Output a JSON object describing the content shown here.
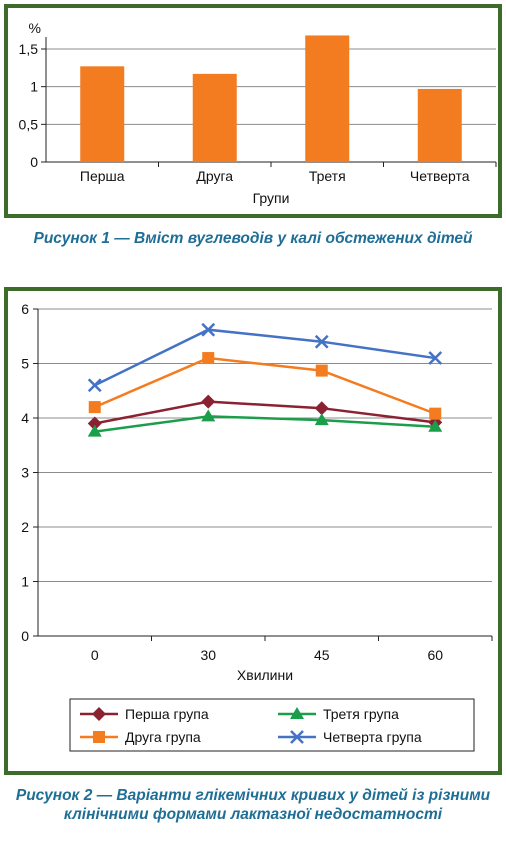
{
  "chart_data": [
    {
      "type": "bar",
      "unit_label": "%",
      "xlabel": "Групи",
      "ylabel": "",
      "categories": [
        "Перша",
        "Друга",
        "Третя",
        "Четверта"
      ],
      "values": [
        1.27,
        1.17,
        1.68,
        0.97
      ],
      "ylim": [
        0,
        1.5
      ],
      "yticks": [
        "0",
        "0,5",
        "1",
        "1,5"
      ],
      "ytick_values": [
        0,
        0.5,
        1,
        1.5
      ],
      "grid": true,
      "color": "#f47c20",
      "caption": "Рисунок 1 — Вміст вуглеводів у калі обстежених дітей"
    },
    {
      "type": "line",
      "xlabel": "Хвилини",
      "ylabel": "",
      "x": [
        "0",
        "30",
        "45",
        "60"
      ],
      "ylim": [
        0,
        6
      ],
      "yticks": [
        "0",
        "1",
        "2",
        "3",
        "4",
        "5",
        "6"
      ],
      "grid": true,
      "legend_position": "bottom",
      "series": [
        {
          "name": "Перша група",
          "values": [
            3.9,
            4.3,
            4.18,
            3.92
          ],
          "color": "#8b2232",
          "marker": "diamond"
        },
        {
          "name": "Друга група",
          "values": [
            4.2,
            5.1,
            4.87,
            4.08
          ],
          "color": "#f47c20",
          "marker": "square"
        },
        {
          "name": "Третя група",
          "values": [
            3.75,
            4.03,
            3.96,
            3.84
          ],
          "color": "#1a9e4a",
          "marker": "triangle"
        },
        {
          "name": "Четверта група",
          "values": [
            4.6,
            5.62,
            5.4,
            5.1
          ],
          "color": "#4472c4",
          "marker": "x"
        }
      ],
      "caption": "Рисунок 2 — Варіанти глікемічних кривих у дітей із різними клінічними формами лактазної недостатності"
    }
  ],
  "colors": {
    "frame": "#3d6b2a",
    "caption": "#1f6e96",
    "grid": "#8c8c8c"
  }
}
